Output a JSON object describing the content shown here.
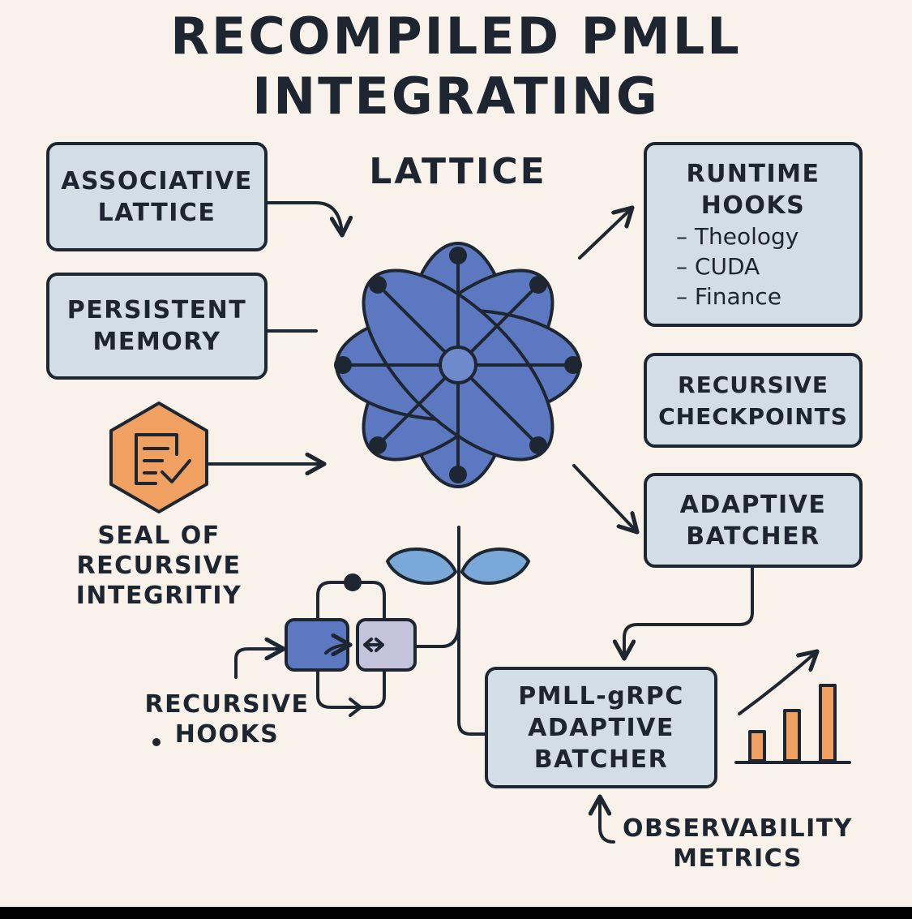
{
  "title": {
    "line1": "RECOMPILED PMLL",
    "line2": "INTEGRATING"
  },
  "subtitle": "LATTICE",
  "nodes": {
    "associative": {
      "line1": "ASSOCIATIVE",
      "line2": "LATTICE"
    },
    "persistent": {
      "line1": "PERSISTENT",
      "line2": "MEMORY"
    },
    "runtime": {
      "line1": "RUNTIME",
      "line2": "HOOKS",
      "items": [
        "– Theology",
        "– CUDA",
        "– Finance"
      ]
    },
    "checkpoints": {
      "line1": "RECURSIVE",
      "line2": "CHECKPOINTS"
    },
    "adaptive": {
      "line1": "ADAPTIVE",
      "line2": "BATCHER"
    },
    "grpc": {
      "line1": "PMLL-gRPC",
      "line2": "ADAPTIVE",
      "line3": "BATCHER"
    }
  },
  "labels": {
    "seal": {
      "line1": "SEAL OF",
      "line2": "RECURSIVE",
      "line3": "INTEGRITIY"
    },
    "hooks": {
      "line1": "RECURSIVE",
      "line2": "HOOKS"
    },
    "observability": {
      "line1": "OBSERVABILITY",
      "line2": "METRICS"
    }
  },
  "icons": {
    "flower": "lattice-flower-icon",
    "seal": "document-check-icon",
    "hooks": "recursive-loop-icon",
    "chart": "bar-chart-growth-icon"
  },
  "colors": {
    "background": "#f8f2ea",
    "box_fill": "#d3dde6",
    "outline": "#1e2731",
    "petal": "#5b78c0",
    "leaf": "#79a8d9",
    "accent_orange": "#f0a060",
    "module_purple": "#c4c3dc"
  }
}
